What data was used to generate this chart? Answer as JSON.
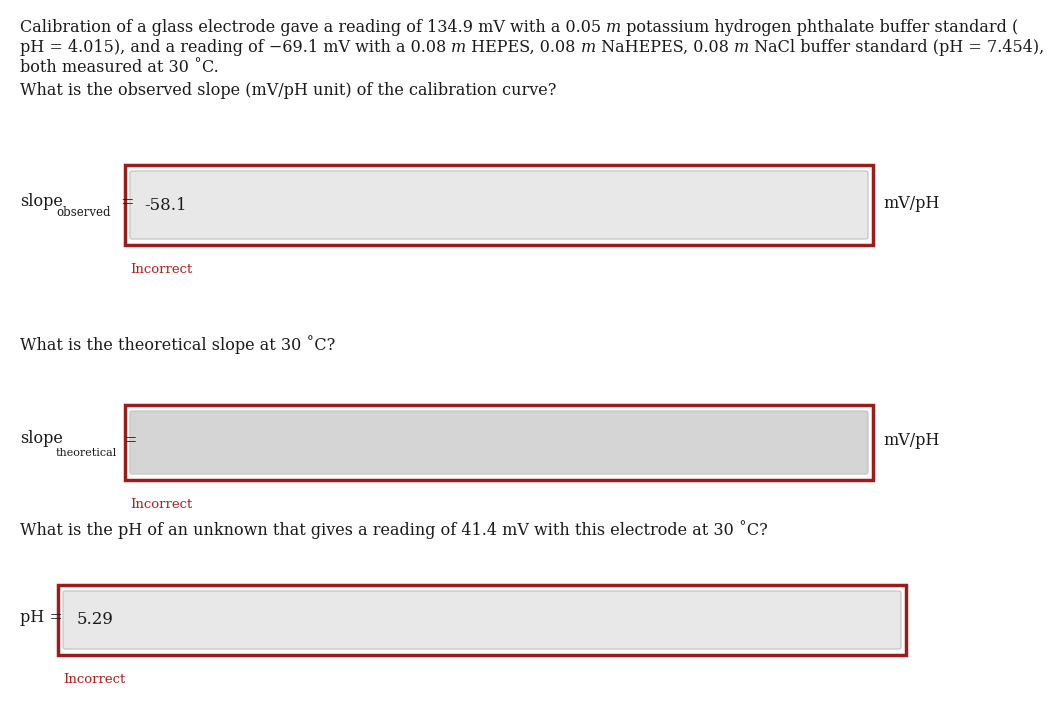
{
  "line1a": "Calibration of a glass electrode gave a reading of 134.9 mV with a 0.05 ",
  "line1b": "m",
  "line1c": " potassium hydrogen phthalate buffer standard (",
  "line2a": "pH = 4.015), and a reading of −69.1 mV with a 0.08 ",
  "line2b": "m",
  "line2c": " HEPES, 0.08 ",
  "line2d": "m",
  "line2e": " NaHEPES, 0.08 ",
  "line2f": "m",
  "line2g": " NaCl buffer standard (pH = 7.454),",
  "line3": "both measured at 30 ˚C.",
  "q1": "What is the observed slope (mV/pH unit) of the calibration curve?",
  "q2": "What is the theoretical slope at 30 ˚C?",
  "q3": "What is the pH of an unknown that gives a reading of 41.4 mV with this electrode at 30 ˚C?",
  "val1": "-58.1",
  "val2": "",
  "val3": "5.29",
  "unit1": "mV/pH",
  "unit2": "mV/pH",
  "incorrect": "Incorrect",
  "box_border_color": "#9b1c1c",
  "inner_box_color": "#e8e8e8",
  "outer_box_bg": "#ffffff",
  "incorrect_color": "#b91c1c",
  "text_color": "#1a1a1a",
  "bg_color": "#ffffff",
  "font_size": 11.5,
  "font_family": "DejaVu Serif"
}
